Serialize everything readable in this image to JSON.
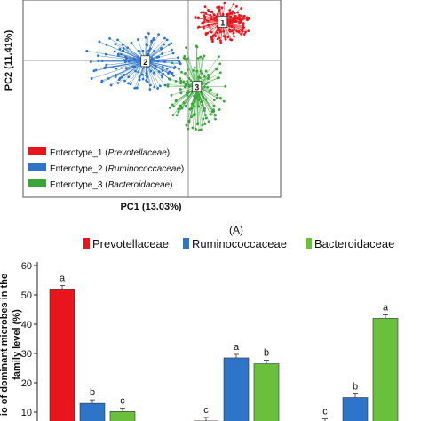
{
  "chart_data": [
    {
      "type": "scatter",
      "xlabel": "PC1 (13.03%)",
      "ylabel": "PC2 (11.41%)",
      "caption": "(A)",
      "xlim": [
        -1,
        1
      ],
      "ylim": [
        -1,
        1
      ],
      "legend_position": "bottom-left",
      "series": [
        {
          "name": "Enterotype_1",
          "family": "Prevotellaceae",
          "color": "#e8151c",
          "centroid_label": "1",
          "centroid": [
            0.55,
            0.78
          ]
        },
        {
          "name": "Enterotype_2",
          "family": "Ruminococcaceae",
          "color": "#2e74c9",
          "centroid_label": "2",
          "centroid": [
            -0.05,
            0.38
          ]
        },
        {
          "name": "Enterotype_3",
          "family": "Bacteroidaceae",
          "color": "#3aa63a",
          "centroid_label": "3",
          "centroid": [
            0.35,
            0.12
          ]
        }
      ]
    },
    {
      "type": "bar",
      "ylabel_lines": [
        "io of dominant microbes in the",
        "family level (%)"
      ],
      "ylim": [
        10,
        60
      ],
      "yticks": [
        10,
        20,
        30,
        40,
        50,
        60
      ],
      "legend_position": "top",
      "series": [
        {
          "name": "Prevotellaceae",
          "color": "#e8151c",
          "values": [
            52,
            7,
            6.5
          ],
          "letters": [
            "a",
            "c",
            "c"
          ]
        },
        {
          "name": "Ruminococcaceae",
          "color": "#2e74c9",
          "values": [
            13,
            28.5,
            15
          ],
          "letters": [
            "b",
            "a",
            "b"
          ]
        },
        {
          "name": "Bacteroidaceae",
          "color": "#6abf3c",
          "values": [
            10.2,
            26.5,
            42
          ],
          "letters": [
            "c",
            "b",
            "a"
          ]
        }
      ]
    }
  ]
}
